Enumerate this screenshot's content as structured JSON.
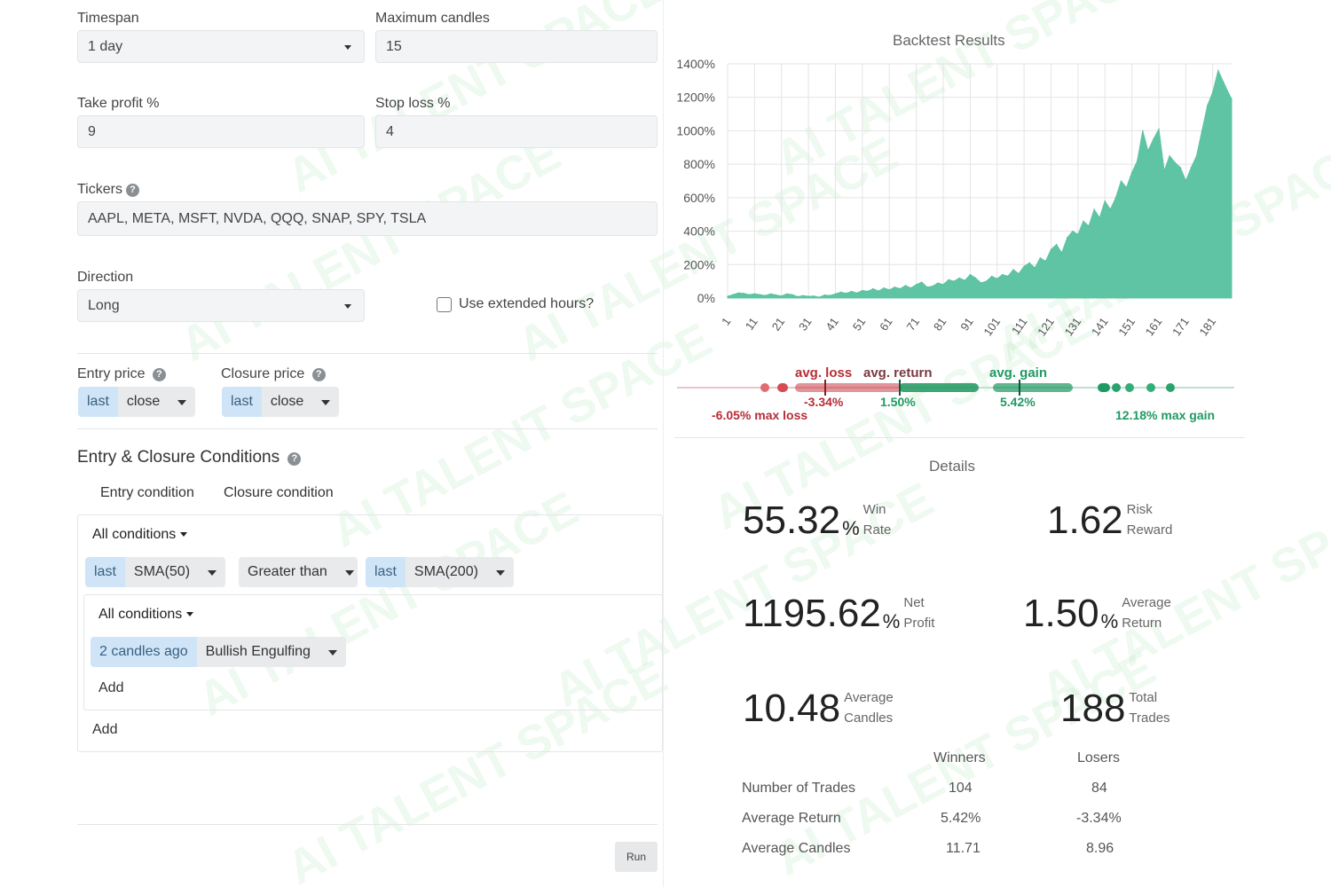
{
  "form": {
    "timespan_label": "Timespan",
    "timespan_value": "1 day",
    "max_candles_label": "Maximum candles",
    "max_candles_value": "15",
    "take_profit_label": "Take profit %",
    "take_profit_value": "9",
    "stop_loss_label": "Stop loss %",
    "stop_loss_value": "4",
    "tickers_label": "Tickers",
    "tickers_value": "AAPL, META, MSFT, NVDA, QQQ, SNAP, SPY, TSLA",
    "direction_label": "Direction",
    "direction_value": "Long",
    "extended_hours_label": "Use extended hours?",
    "entry_price_label": "Entry price",
    "entry_price_ref": "last",
    "entry_price_field": "close",
    "closure_price_label": "Closure price",
    "closure_price_ref": "last",
    "closure_price_field": "close"
  },
  "conditions": {
    "title": "Entry & Closure Conditions",
    "tab_entry": "Entry condition",
    "tab_closure": "Closure condition",
    "group_label": "All conditions",
    "row1": {
      "left_ref": "last",
      "left_indicator": "SMA(50)",
      "operator": "Greater than",
      "right_ref": "last",
      "right_indicator": "SMA(200)"
    },
    "nested_group_label": "All conditions",
    "nested_row": {
      "ref": "2 candles ago",
      "pattern": "Bullish Engulfing"
    },
    "nested_add": "Add",
    "outer_add": "Add"
  },
  "run_button": "Run",
  "results": {
    "title": "Backtest Results",
    "dist": {
      "avg_loss_label": "avg. loss",
      "avg_return_label": "avg. return",
      "avg_gain_label": "avg. gain",
      "avg_loss_value": "-3.34%",
      "avg_return_value": "1.50%",
      "avg_gain_value": "5.42%",
      "max_loss_label": "-6.05% max loss",
      "max_gain_label": "12.18% max gain",
      "loss_color": "#c0313b",
      "gain_color": "#1f9a63"
    }
  },
  "details": {
    "title": "Details",
    "win_rate": "55.32",
    "win_rate_unit": "%",
    "win_rate_cap1": "Win",
    "win_rate_cap2": "Rate",
    "risk_reward": "1.62",
    "risk_reward_cap1": "Risk",
    "risk_reward_cap2": "Reward",
    "net_profit": "1195.62",
    "net_profit_unit": "%",
    "net_profit_cap1": "Net",
    "net_profit_cap2": "Profit",
    "avg_return": "1.50",
    "avg_return_unit": "%",
    "avg_return_cap1": "Average",
    "avg_return_cap2": "Return",
    "avg_candles": "10.48",
    "avg_candles_cap1": "Average",
    "avg_candles_cap2": "Candles",
    "total_trades": "188",
    "total_trades_cap1": "Total",
    "total_trades_cap2": "Trades",
    "table": {
      "headers": [
        "",
        "Winners",
        "Losers"
      ],
      "rows": [
        [
          "Number of Trades",
          "104",
          "84"
        ],
        [
          "Average Return",
          "5.42%",
          "-3.34%"
        ],
        [
          "Average Candles",
          "11.71",
          "8.96"
        ]
      ]
    }
  },
  "watermark": "AI TALENT SPACE",
  "chart_data": {
    "type": "area",
    "title": "Backtest Results",
    "xlabel": "",
    "ylabel": "",
    "ylim": [
      0,
      1400
    ],
    "y_ticks": [
      "0%",
      "200%",
      "400%",
      "600%",
      "800%",
      "1000%",
      "1200%",
      "1400%"
    ],
    "x_ticks": [
      "1",
      "11",
      "21",
      "31",
      "41",
      "51",
      "61",
      "71",
      "81",
      "91",
      "101",
      "111",
      "121",
      "131",
      "141",
      "151",
      "161",
      "171",
      "181"
    ],
    "grid": true,
    "color": "#5fc4a3",
    "x": [
      1,
      3,
      5,
      7,
      9,
      11,
      13,
      15,
      17,
      19,
      21,
      23,
      25,
      27,
      29,
      31,
      33,
      35,
      37,
      39,
      41,
      43,
      45,
      47,
      49,
      51,
      53,
      55,
      57,
      59,
      61,
      63,
      65,
      67,
      69,
      71,
      73,
      75,
      77,
      79,
      81,
      83,
      85,
      87,
      89,
      91,
      93,
      95,
      97,
      99,
      101,
      103,
      105,
      107,
      109,
      111,
      113,
      115,
      117,
      119,
      121,
      123,
      125,
      127,
      129,
      131,
      133,
      135,
      137,
      139,
      141,
      143,
      145,
      147,
      149,
      151,
      153,
      155,
      157,
      159,
      161,
      163,
      165,
      167,
      169,
      171,
      173,
      175,
      177,
      179,
      181,
      183,
      185,
      187,
      188
    ],
    "values": [
      10,
      20,
      30,
      28,
      20,
      25,
      20,
      15,
      25,
      18,
      12,
      25,
      20,
      8,
      15,
      10,
      12,
      5,
      18,
      15,
      25,
      35,
      28,
      40,
      30,
      45,
      40,
      55,
      42,
      60,
      48,
      65,
      55,
      75,
      60,
      80,
      95,
      65,
      70,
      90,
      80,
      110,
      100,
      120,
      105,
      140,
      120,
      90,
      100,
      130,
      115,
      140,
      130,
      170,
      145,
      190,
      210,
      180,
      240,
      220,
      290,
      320,
      270,
      360,
      400,
      380,
      460,
      430,
      530,
      480,
      580,
      530,
      600,
      700,
      660,
      750,
      820,
      1000,
      880,
      950,
      1010,
      760,
      850,
      810,
      780,
      700,
      780,
      850,
      1000,
      1150,
      1230,
      1360,
      1290,
      1220,
      1190
    ]
  }
}
